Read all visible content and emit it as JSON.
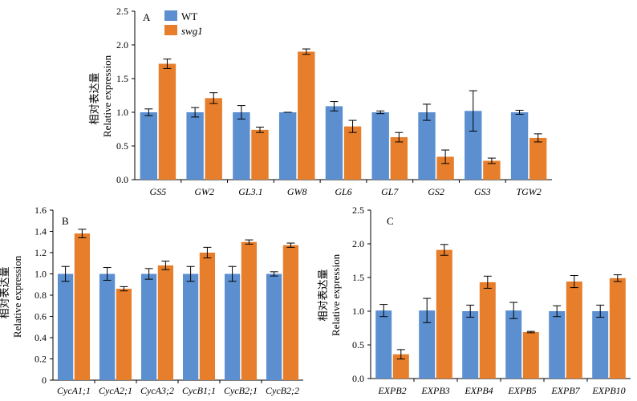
{
  "colors": {
    "wt": "#5b8fd0",
    "mutant": "#e67e2b",
    "axis": "#000000"
  },
  "legend": {
    "wt_label": "WT",
    "mutant_label": "swg1"
  },
  "chart_data": [
    {
      "id": "A",
      "panel_label": "A",
      "type": "bar",
      "ylabel_cn": "相对表达量",
      "ylabel": "Relative expression",
      "ylim": [
        0,
        2.5
      ],
      "yticks": [
        "0.0",
        "0.5",
        "1.0",
        "1.5",
        "2.0",
        "2.5"
      ],
      "categories": [
        "GS5",
        "GW2",
        "GL3.1",
        "GW8",
        "GL6",
        "GL7",
        "GS2",
        "GS3",
        "TGW2"
      ],
      "series": [
        {
          "name": "WT",
          "values": [
            1.0,
            1.0,
            1.0,
            1.0,
            1.09,
            1.0,
            1.0,
            1.02,
            1.0
          ],
          "errors": [
            0.05,
            0.07,
            0.1,
            0.0,
            0.07,
            0.02,
            0.12,
            0.3,
            0.03
          ]
        },
        {
          "name": "swg1",
          "values": [
            1.72,
            1.21,
            0.74,
            1.9,
            0.79,
            0.63,
            0.34,
            0.28,
            0.62
          ],
          "errors": [
            0.07,
            0.08,
            0.04,
            0.04,
            0.09,
            0.07,
            0.1,
            0.04,
            0.06
          ]
        }
      ]
    },
    {
      "id": "B",
      "panel_label": "B",
      "type": "bar",
      "ylabel_cn": "相对表达量",
      "ylabel": "Relative expression",
      "ylim": [
        0,
        1.6
      ],
      "yticks": [
        "0",
        "0.2",
        "0.4",
        "0.6",
        "0.8",
        "1.0",
        "1.2",
        "1.4",
        "1.6"
      ],
      "categories": [
        "CycA1;1",
        "CycA2;1",
        "CycA3;2",
        "CycB1;1",
        "CycB2;1",
        "CycB2;2"
      ],
      "series": [
        {
          "name": "WT",
          "values": [
            1.0,
            1.0,
            1.0,
            1.0,
            1.0,
            1.0
          ],
          "errors": [
            0.07,
            0.06,
            0.05,
            0.07,
            0.07,
            0.02
          ]
        },
        {
          "name": "swg1",
          "values": [
            1.38,
            0.86,
            1.08,
            1.2,
            1.3,
            1.27
          ],
          "errors": [
            0.04,
            0.02,
            0.04,
            0.05,
            0.02,
            0.02
          ]
        }
      ]
    },
    {
      "id": "C",
      "panel_label": "C",
      "type": "bar",
      "ylabel_cn": "相对表达量",
      "ylabel": "Relative expression",
      "ylim": [
        0,
        2.5
      ],
      "yticks": [
        "0.0",
        "0.5",
        "1.0",
        "1.5",
        "2.0",
        "2.5"
      ],
      "categories": [
        "EXPB2",
        "EXPB3",
        "EXPB4",
        "EXPB5",
        "EXPB7",
        "EXPB10"
      ],
      "series": [
        {
          "name": "WT",
          "values": [
            1.01,
            1.01,
            1.0,
            1.01,
            1.0,
            1.0
          ],
          "errors": [
            0.09,
            0.18,
            0.09,
            0.12,
            0.08,
            0.09
          ]
        },
        {
          "name": "swg1",
          "values": [
            0.36,
            1.91,
            1.43,
            0.69,
            1.44,
            1.49
          ],
          "errors": [
            0.07,
            0.08,
            0.09,
            0.01,
            0.09,
            0.05
          ]
        }
      ]
    }
  ]
}
